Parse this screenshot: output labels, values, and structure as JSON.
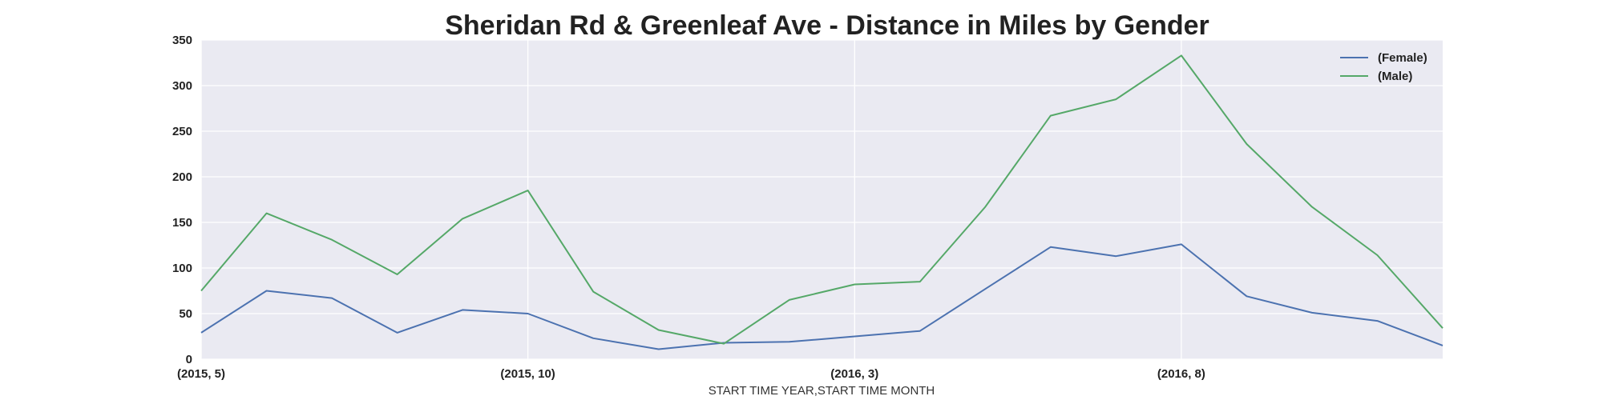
{
  "chart_data": {
    "type": "line",
    "title": "Sheridan Rd & Greenleaf Ave - Distance in Miles by Gender",
    "xlabel": "START TIME YEAR,START TIME MONTH",
    "ylabel": "",
    "x": [
      "(2015, 5)",
      "(2015, 6)",
      "(2015, 7)",
      "(2015, 8)",
      "(2015, 9)",
      "(2015, 10)",
      "(2015, 11)",
      "(2015, 12)",
      "(2016, 1)",
      "(2016, 2)",
      "(2016, 3)",
      "(2016, 4)",
      "(2016, 5)",
      "(2016, 6)",
      "(2016, 7)",
      "(2016, 8)",
      "(2016, 9)",
      "(2016, 10)",
      "(2016, 11)",
      "(2016, 12)"
    ],
    "x_tick_labels": [
      "(2015, 5)",
      "(2015, 10)",
      "(2016, 3)",
      "(2016, 8)"
    ],
    "y_ticks": [
      0,
      50,
      100,
      150,
      200,
      250,
      300,
      350
    ],
    "ylim": [
      0,
      350
    ],
    "grid": true,
    "legend_position": "top-right",
    "series": [
      {
        "name": "(Female)",
        "color": "#4c72b0",
        "values": [
          29,
          75,
          67,
          29,
          54,
          50,
          23,
          11,
          18,
          19,
          25,
          31,
          77,
          123,
          113,
          126,
          69,
          51,
          42,
          15
        ]
      },
      {
        "name": "(Male)",
        "color": "#55a868",
        "values": [
          75,
          160,
          131,
          93,
          154,
          185,
          74,
          32,
          17,
          65,
          82,
          85,
          167,
          267,
          285,
          333,
          236,
          167,
          114,
          34
        ]
      }
    ]
  }
}
